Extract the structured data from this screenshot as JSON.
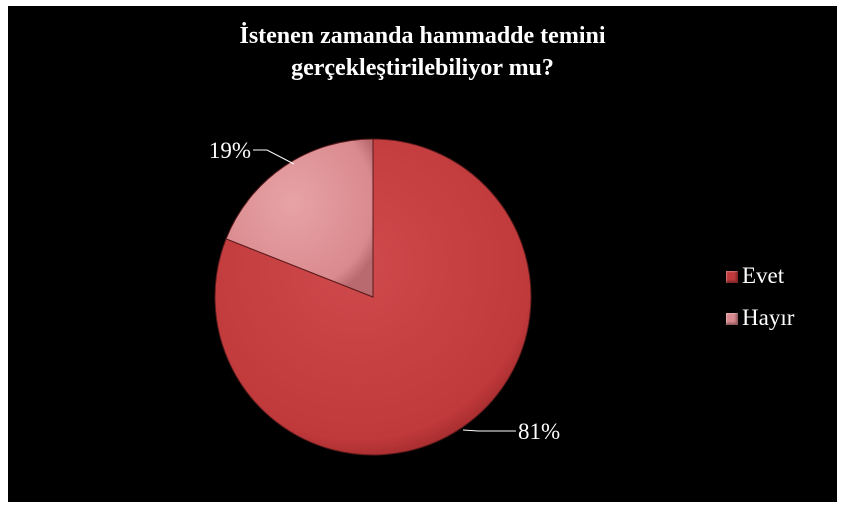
{
  "chart_data": {
    "type": "pie",
    "title": "İstenen zamanda hammadde temini gerçekleştirilebiliyor mu?",
    "title_lines": [
      "İstenen zamanda  hammadde temini",
      "gerçekleştirilebiliyor mu?"
    ],
    "categories": [
      "Evet",
      "Hayır"
    ],
    "values": [
      81,
      19
    ],
    "data_labels": [
      "81%",
      "19%"
    ],
    "colors": [
      "#c0393b",
      "#d98a8e"
    ],
    "legend_position": "right",
    "background": "#000000"
  }
}
